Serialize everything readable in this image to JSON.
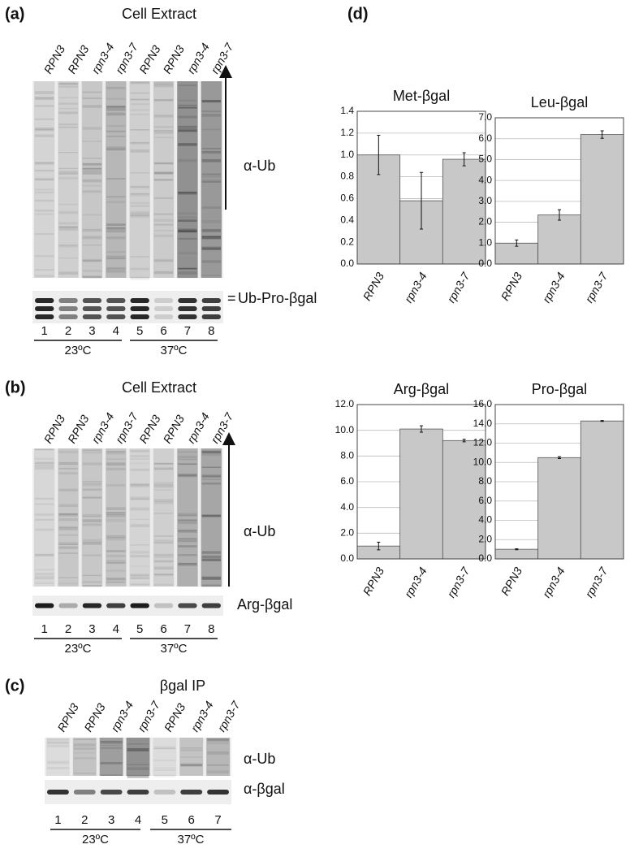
{
  "panels": {
    "a": {
      "label": "(a)",
      "title": "Cell Extract",
      "lanes": [
        "RPN3",
        "RPN3",
        "rpn3-4",
        "rpn3-7",
        "RPN3",
        "RPN3",
        "rpn3-4",
        "rpn3-7"
      ],
      "lane_numbers": [
        "1",
        "2",
        "3",
        "4",
        "5",
        "6",
        "7",
        "8"
      ],
      "temperatures": [
        "23ºC",
        "37ºC"
      ],
      "antibody": "α-Ub",
      "band_label": "Ub-Pro-βgal"
    },
    "b": {
      "label": "(b)",
      "title": "Cell Extract",
      "lanes": [
        "RPN3",
        "RPN3",
        "rpn3-4",
        "rpn3-7",
        "RPN3",
        "RPN3",
        "rpn3-4",
        "rpn3-7"
      ],
      "lane_numbers": [
        "1",
        "2",
        "3",
        "4",
        "5",
        "6",
        "7",
        "8"
      ],
      "temperatures": [
        "23ºC",
        "37ºC"
      ],
      "antibody": "α-Ub",
      "band_label": "Arg-βgal"
    },
    "c": {
      "label": "(c)",
      "title": "βgal IP",
      "lanes": [
        "RPN3",
        "RPN3",
        "rpn3-4",
        "rpn3-7",
        "RPN3",
        "rpn3-4",
        "rpn3-7"
      ],
      "lane_numbers": [
        "1",
        "2",
        "3",
        "4",
        "5",
        "6",
        "7"
      ],
      "temperatures": [
        "23ºC",
        "37ºC"
      ],
      "antibody": "α-Ub",
      "band_label": "α-βgal"
    },
    "d": {
      "label": "(d)"
    }
  },
  "chart_data": [
    {
      "type": "bar",
      "title": "Met-βgal",
      "categories": [
        "RPN3",
        "rpn3-4",
        "rpn3-7"
      ],
      "values": [
        1.0,
        0.58,
        0.96
      ],
      "errors": [
        0.18,
        0.26,
        0.06
      ],
      "color": "#c8c8c8",
      "ylim": [
        0,
        1.4
      ],
      "yticks": [
        {
          "value": 0,
          "label": "0.0"
        },
        {
          "value": 0.2,
          "label": "0.2"
        },
        {
          "value": 0.4,
          "label": "0.4"
        },
        {
          "value": 0.6,
          "label": "0.6"
        },
        {
          "value": 0.8,
          "label": "0.8"
        },
        {
          "value": 1,
          "label": "1.0"
        },
        {
          "value": 1.2,
          "label": "1.2"
        },
        {
          "value": 1.4,
          "label": "1.4"
        }
      ],
      "grid": true
    },
    {
      "type": "bar",
      "title": "Leu-βgal",
      "categories": [
        "RPN3",
        "rpn3-4",
        "rpn3-7"
      ],
      "values": [
        1.0,
        2.35,
        6.2
      ],
      "errors": [
        0.15,
        0.25,
        0.18
      ],
      "color": "#c8c8c8",
      "ylim": [
        0,
        7
      ],
      "yticks": [
        {
          "value": 0,
          "label": "0.0"
        },
        {
          "value": 1,
          "label": "1.0"
        },
        {
          "value": 2,
          "label": "2.0"
        },
        {
          "value": 3,
          "label": "3.0"
        },
        {
          "value": 4,
          "label": "4.0"
        },
        {
          "value": 5,
          "label": "5.0"
        },
        {
          "value": 6,
          "label": "6.0"
        },
        {
          "value": 7,
          "label": "7.0"
        }
      ],
      "grid": true
    },
    {
      "type": "bar",
      "title": "Arg-βgal",
      "categories": [
        "RPN3",
        "rpn3-4",
        "rpn3-7"
      ],
      "values": [
        1.0,
        10.1,
        9.2
      ],
      "errors": [
        0.3,
        0.25,
        0.1
      ],
      "color": "#c8c8c8",
      "ylim": [
        0,
        12
      ],
      "yticks": [
        {
          "value": 0,
          "label": "0.0"
        },
        {
          "value": 2,
          "label": "2.0"
        },
        {
          "value": 4,
          "label": "4.0"
        },
        {
          "value": 6,
          "label": "6.0"
        },
        {
          "value": 8,
          "label": "8.0"
        },
        {
          "value": 10,
          "label": "10.0"
        },
        {
          "value": 12,
          "label": "12.0"
        }
      ],
      "grid": true
    },
    {
      "type": "bar",
      "title": "Pro-βgal",
      "categories": [
        "RPN3",
        "rpn3-4",
        "rpn3-7"
      ],
      "values": [
        1.0,
        10.5,
        14.3
      ],
      "errors": [
        0.05,
        0.1,
        0.05
      ],
      "color": "#c8c8c8",
      "ylim": [
        0,
        16
      ],
      "yticks": [
        {
          "value": 0,
          "label": "0.0"
        },
        {
          "value": 2,
          "label": "2.0"
        },
        {
          "value": 4,
          "label": "4.0"
        },
        {
          "value": 6,
          "label": "6.0"
        },
        {
          "value": 8,
          "label": "8.0"
        },
        {
          "value": 10,
          "label": "10.0"
        },
        {
          "value": 12,
          "label": "12.0"
        },
        {
          "value": 14,
          "label": "14.0"
        },
        {
          "value": 16,
          "label": "16.0"
        }
      ],
      "grid": true
    }
  ]
}
